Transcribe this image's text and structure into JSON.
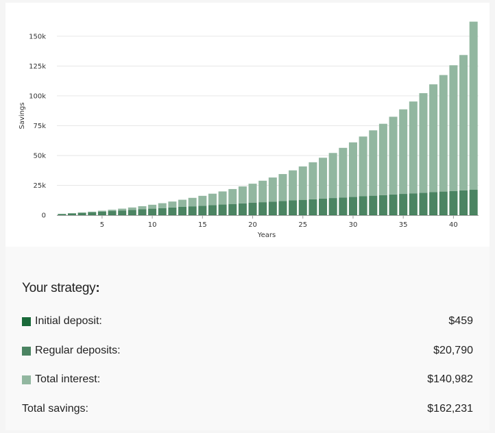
{
  "chart_data": {
    "type": "bar",
    "stacked": true,
    "xlabel": "Years",
    "ylabel": "Savings",
    "ylim": [
      0,
      162000
    ],
    "x_tick_labels": [
      "5",
      "10",
      "15",
      "20",
      "25",
      "30",
      "35",
      "40"
    ],
    "x_tick_values": [
      5,
      10,
      15,
      20,
      25,
      30,
      35,
      40
    ],
    "y_tick_labels": [
      "0",
      "25k",
      "50k",
      "75k",
      "100k",
      "125k",
      "150k"
    ],
    "y_tick_values": [
      0,
      25000,
      50000,
      75000,
      100000,
      125000,
      150000
    ],
    "categories": [
      1,
      2,
      3,
      4,
      5,
      6,
      7,
      8,
      9,
      10,
      11,
      12,
      13,
      14,
      15,
      16,
      17,
      18,
      19,
      20,
      21,
      22,
      23,
      24,
      25,
      26,
      27,
      28,
      29,
      30,
      31,
      32,
      33,
      34,
      35,
      36,
      37,
      38,
      39,
      40,
      41,
      42
    ],
    "series": [
      {
        "name": "Initial deposit",
        "color": "#1a6a3a",
        "values": [
          459,
          459,
          459,
          459,
          459,
          459,
          459,
          459,
          459,
          459,
          459,
          459,
          459,
          459,
          459,
          459,
          459,
          459,
          459,
          459,
          459,
          459,
          459,
          459,
          459,
          459,
          459,
          459,
          459,
          459,
          459,
          459,
          459,
          459,
          459,
          459,
          459,
          459,
          459,
          459,
          459,
          459
        ]
      },
      {
        "name": "Regular deposits",
        "color": "#4b8462",
        "values": [
          495,
          990,
          1485,
          1980,
          2475,
          2970,
          3465,
          3960,
          4455,
          4950,
          5445,
          5940,
          6435,
          6930,
          7425,
          7920,
          8415,
          8910,
          9405,
          9900,
          10395,
          10890,
          11385,
          11880,
          12375,
          12870,
          13365,
          13860,
          14355,
          14850,
          15345,
          15840,
          16335,
          16830,
          17325,
          17820,
          18315,
          18810,
          19305,
          19800,
          20295,
          20790
        ]
      },
      {
        "name": "Total interest",
        "color": "#92b7a0",
        "values": [
          50,
          150,
          300,
          500,
          800,
          1100,
          1500,
          2000,
          2600,
          3300,
          4100,
          5000,
          6000,
          7100,
          8300,
          9600,
          11000,
          12500,
          14200,
          16000,
          18000,
          20200,
          22600,
          25200,
          28000,
          31000,
          34300,
          37800,
          41600,
          45700,
          50100,
          54800,
          59800,
          65200,
          70900,
          77000,
          83500,
          90400,
          97700,
          105400,
          113500,
          140982
        ]
      }
    ]
  },
  "summary": {
    "heading": "Your strategy",
    "heading_colon": ":",
    "rows": [
      {
        "label": "Initial deposit:",
        "value": "$459",
        "color": "#1a6a3a"
      },
      {
        "label": "Regular deposits:",
        "value": "$20,790",
        "color": "#4b8462"
      },
      {
        "label": "Total interest:",
        "value": "$140,982",
        "color": "#92b7a0"
      }
    ],
    "total": {
      "label": "Total savings:",
      "value": "$162,231"
    }
  }
}
